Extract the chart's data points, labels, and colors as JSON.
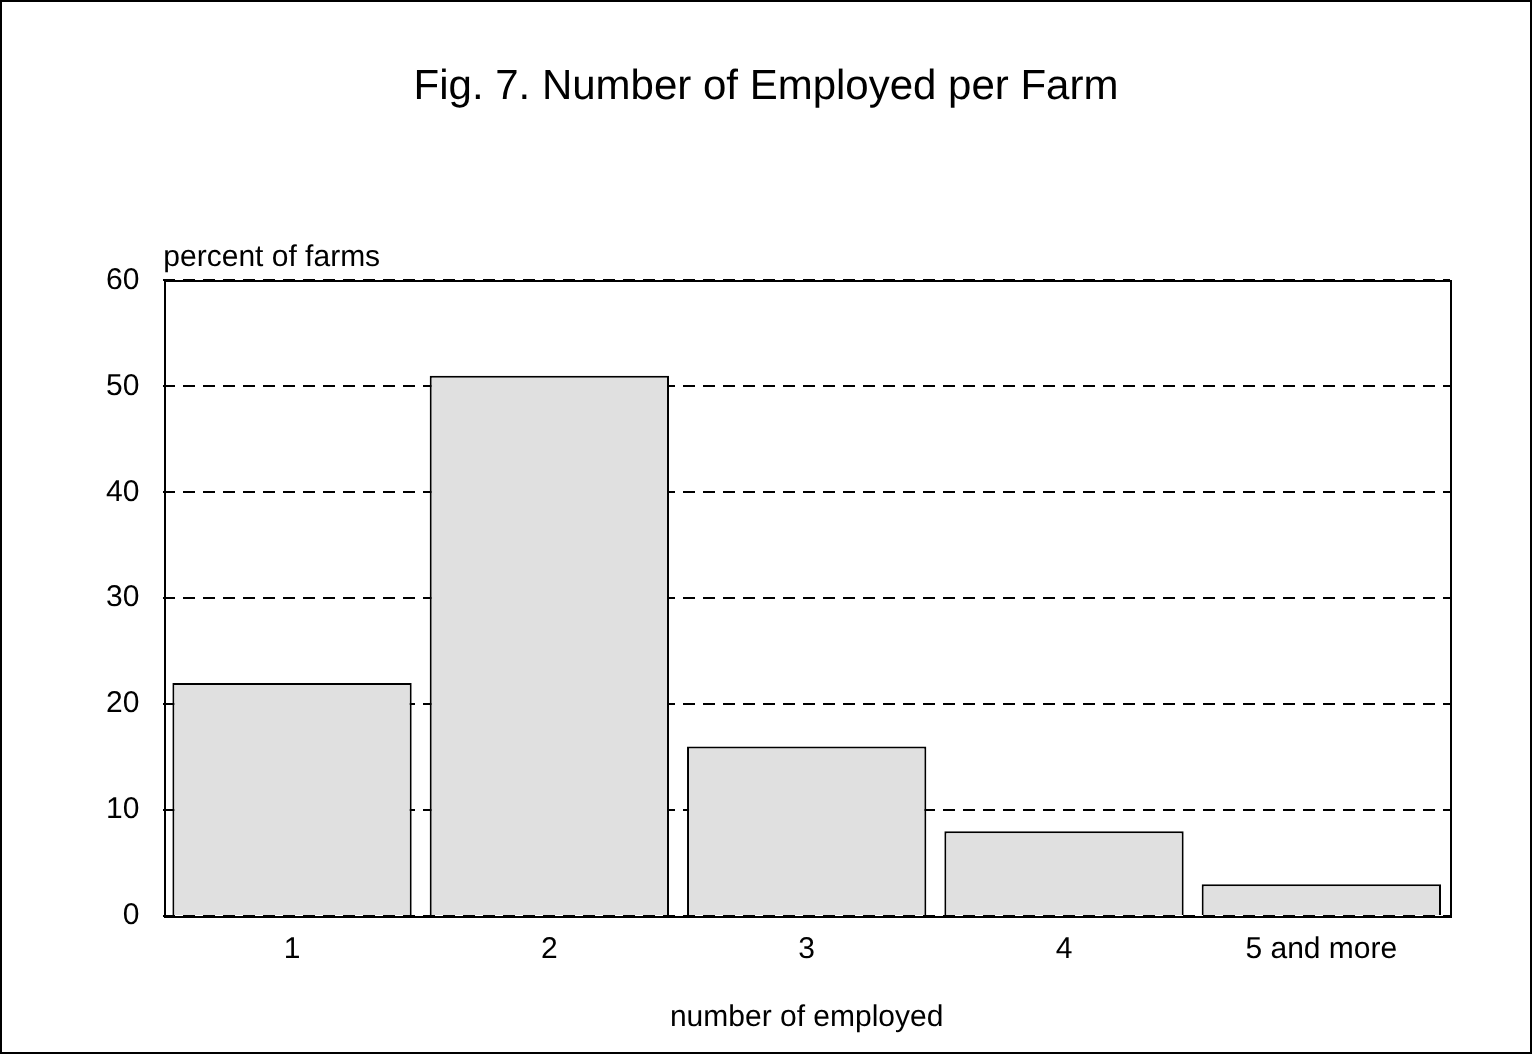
{
  "chart_data": {
    "type": "bar",
    "title": "Fig. 7. Number of Employed per Farm",
    "xlabel": "number of employed",
    "ylabel": "percent of farms",
    "categories": [
      "1",
      "2",
      "3",
      "4",
      "5 and more"
    ],
    "values": [
      22,
      51,
      16,
      8,
      3
    ],
    "color": "#e0e0e0",
    "ylim": [
      0,
      60
    ],
    "yticks": [
      0,
      10,
      20,
      30,
      40,
      50,
      60
    ],
    "grid": "y",
    "legend": false
  }
}
